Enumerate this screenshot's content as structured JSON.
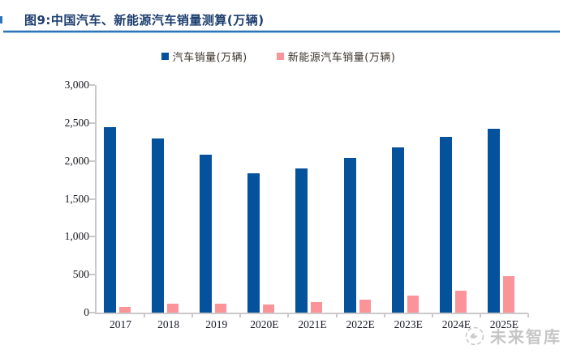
{
  "title": "图9:中国汽车、新能源汽车销量测算(万辆)",
  "legend": {
    "items": [
      {
        "label": "汽车销量(万辆)",
        "color": "#04529c"
      },
      {
        "label": "新能源汽车销量(万辆)",
        "color": "#fb9499"
      }
    ]
  },
  "watermark": {
    "text": "未来智库",
    "logo": "bird-circle-logo"
  },
  "colors": {
    "auto_series": "#04529c",
    "nev_series": "#fb9499",
    "title_blue": "#1c3d6e",
    "underline_blue": "#2e74b5",
    "axis_gray": "#c9c9c9",
    "watermark_gray": "#c6c6c6"
  },
  "chart_data": {
    "type": "bar",
    "title": "图9:中国汽车、新能源汽车销量测算(万辆)",
    "categories": [
      "2017",
      "2018",
      "2019",
      "2020E",
      "2021E",
      "2022E",
      "2023E",
      "2024E",
      "2025E"
    ],
    "series": [
      {
        "name": "汽车销量(万辆)",
        "color": "#04529c",
        "values": [
          2440,
          2300,
          2080,
          1840,
          1905,
          2035,
          2175,
          2315,
          2425
        ]
      },
      {
        "name": "新能源汽车销量(万辆)",
        "color": "#fb9499",
        "values": [
          78,
          122,
          115,
          110,
          138,
          172,
          228,
          288,
          480
        ]
      }
    ],
    "xlabel": "",
    "ylabel": "",
    "ylim": [
      0,
      3000
    ],
    "yticks": [
      0,
      500,
      1000,
      1500,
      2000,
      2500,
      3000
    ],
    "ytick_labels": [
      "0",
      "500",
      "1,000",
      "1,500",
      "2,000",
      "2,500",
      "3,000"
    ],
    "grid": false,
    "legend_position": "top-center",
    "bar_unit": "万辆"
  }
}
